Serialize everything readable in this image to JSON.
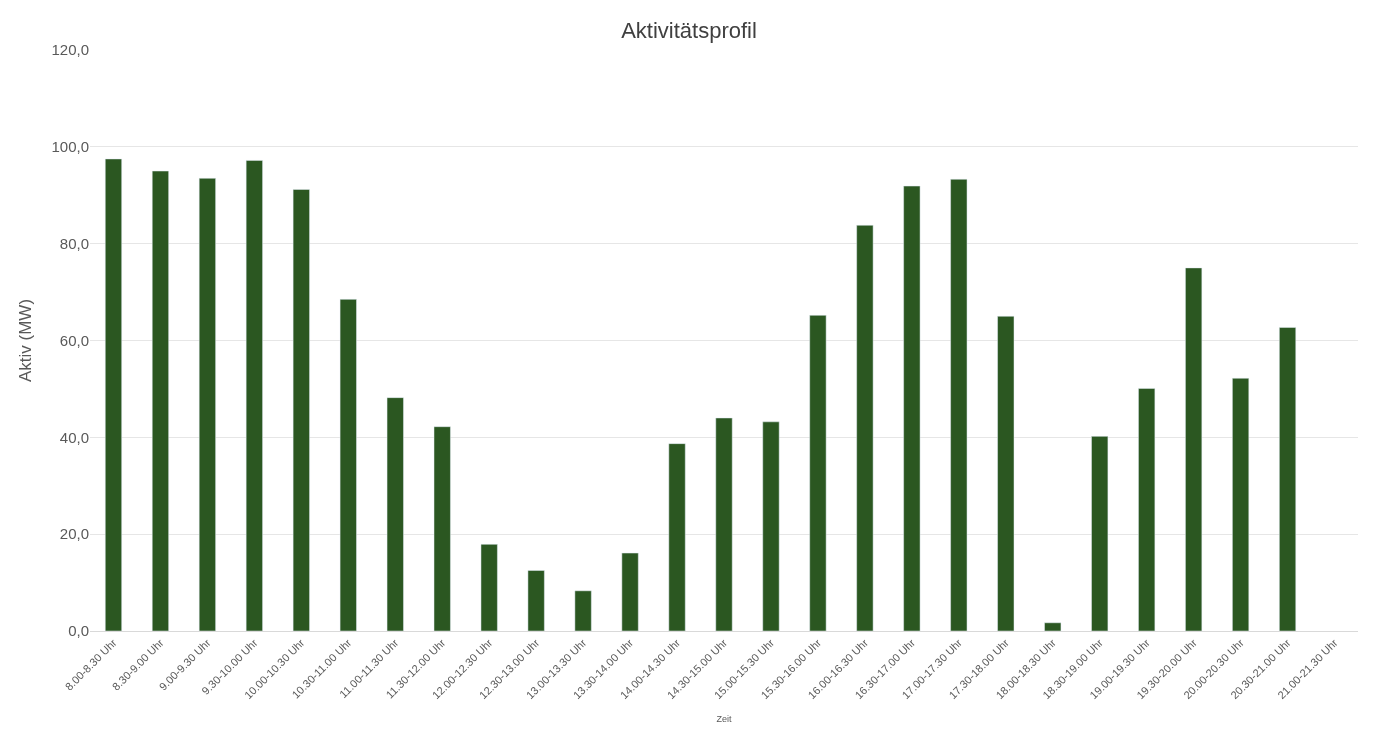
{
  "chart_data": {
    "type": "bar",
    "title": "Aktivitätsprofil",
    "xlabel": "Zeit",
    "ylabel": "Aktiv (MW)",
    "categories": [
      "8.00-8.30 Uhr",
      "8.30-9.00 Uhr",
      "9.00-9.30 Uhr",
      "9.30-10.00 Uhr",
      "10.00-10.30 Uhr",
      "10.30-11.00 Uhr",
      "11.00-11.30 Uhr",
      "11.30-12.00 Uhr",
      "12.00-12.30 Uhr",
      "12.30-13.00 Uhr",
      "13.00-13.30 Uhr",
      "13.30-14.00 Uhr",
      "14.00-14.30 Uhr",
      "14.30-15.00 Uhr",
      "15.00-15.30 Uhr",
      "15.30-16.00 Uhr",
      "16.00-16.30 Uhr",
      "16.30-17.00 Uhr",
      "17.00-17.30 Uhr",
      "17.30-18.00 Uhr",
      "18.00-18.30 Uhr",
      "18.30-19.00 Uhr",
      "19.00-19.30 Uhr",
      "19.30-20.00 Uhr",
      "20.00-20.30 Uhr",
      "20.30-21.00 Uhr",
      "21.00-21.30 Uhr"
    ],
    "values": [
      97.5,
      95.0,
      93.5,
      97.2,
      91.2,
      68.5,
      48.2,
      42.2,
      17.9,
      12.5,
      8.3,
      16.1,
      38.7,
      44.0,
      43.2,
      65.2,
      83.8,
      91.9,
      93.3,
      65.0,
      1.7,
      40.2,
      50.1,
      75.0,
      52.2,
      62.7,
      null
    ],
    "color": "#2b5721",
    "ylim": [
      0,
      120
    ],
    "yticks": [
      {
        "value": 0,
        "label": "0,0"
      },
      {
        "value": 20,
        "label": "20,0"
      },
      {
        "value": 40,
        "label": "40,0"
      },
      {
        "value": 60,
        "label": "60,0"
      },
      {
        "value": 80,
        "label": "80,0"
      },
      {
        "value": 100,
        "label": "100,0"
      },
      {
        "value": 120,
        "label": "120,0"
      }
    ],
    "grid": "y",
    "legend": false
  }
}
